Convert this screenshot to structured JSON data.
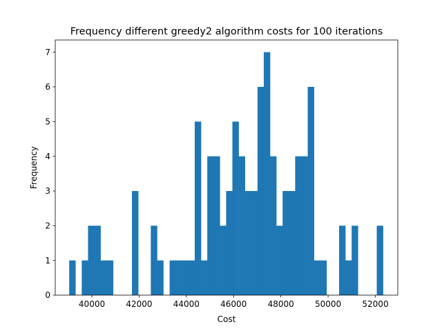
{
  "chart_data": {
    "type": "bar",
    "title": "Frequency different greedy2 algorithm costs for 100 iterations",
    "xlabel": "Cost",
    "ylabel": "Frequency",
    "xlim": [
      38450,
      52950
    ],
    "ylim": [
      0,
      7.35
    ],
    "x_ticks": [
      40000,
      42000,
      44000,
      46000,
      48000,
      50000,
      52000
    ],
    "y_ticks": [
      0,
      1,
      2,
      3,
      4,
      5,
      6,
      7
    ],
    "grid": false,
    "bar_color": "#1f77b4",
    "bin_start": 39040,
    "bin_width": 265.7,
    "counts": [
      1,
      0,
      1,
      2,
      2,
      1,
      1,
      0,
      0,
      0,
      3,
      0,
      0,
      2,
      1,
      0,
      1,
      1,
      1,
      1,
      5,
      1,
      4,
      4,
      2,
      3,
      5,
      4,
      3,
      3,
      6,
      7,
      4,
      2,
      3,
      3,
      4,
      4,
      6,
      1,
      1,
      0,
      0,
      2,
      1,
      2,
      0,
      0,
      0,
      2
    ]
  }
}
